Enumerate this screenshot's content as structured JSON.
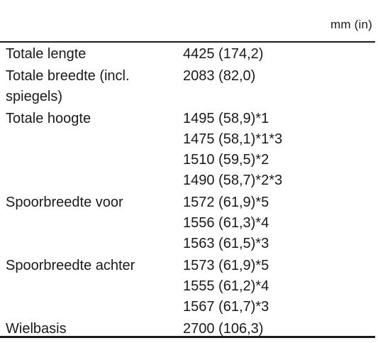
{
  "header": {
    "unit": "mm (in)"
  },
  "rows": [
    {
      "label": "Totale lengte",
      "values": [
        "4425 (174,2)"
      ]
    },
    {
      "label": "Totale breedte (incl. spiegels)",
      "values": [
        "2083 (82,0)"
      ]
    },
    {
      "label": "Totale hoogte",
      "values": [
        "1495 (58,9)*1",
        "1475 (58,1)*1*3",
        "1510 (59,5)*2",
        "1490 (58,7)*2*3"
      ]
    },
    {
      "label": "Spoorbreedte voor",
      "values": [
        "1572 (61,9)*5",
        "1556 (61,3)*4",
        "1563 (61,5)*3"
      ]
    },
    {
      "label": "Spoorbreedte achter",
      "values": [
        "1573 (61,9)*5",
        "1555 (61,2)*4",
        "1567 (61,7)*3"
      ]
    },
    {
      "label": "Wielbasis",
      "values": [
        "2700 (106,3)"
      ]
    }
  ]
}
